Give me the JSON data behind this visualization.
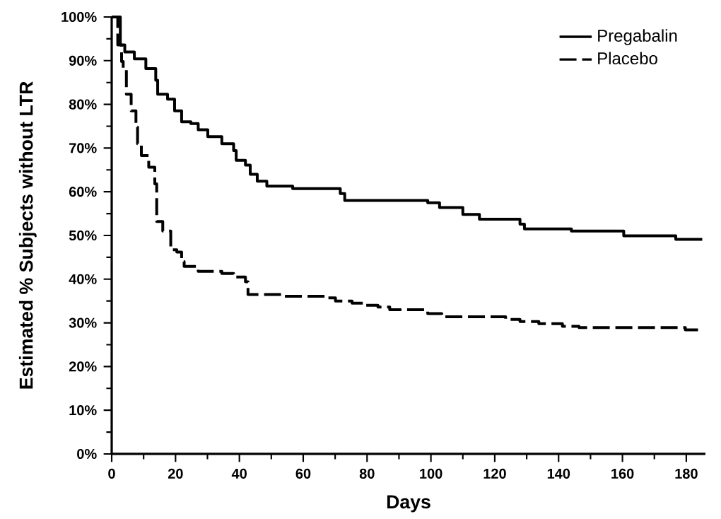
{
  "chart_data": {
    "type": "step",
    "xlabel": "Days",
    "ylabel": "Estimated % Subjects without LTR",
    "xlim": [
      0,
      186
    ],
    "ylim": [
      0,
      100
    ],
    "xticks": [
      0,
      20,
      40,
      60,
      80,
      100,
      120,
      140,
      160,
      180
    ],
    "yticks": [
      {
        "value": 0,
        "label": "0%"
      },
      {
        "value": 10,
        "label": "10%"
      },
      {
        "value": 20,
        "label": "20%"
      },
      {
        "value": 30,
        "label": "30%"
      },
      {
        "value": 40,
        "label": "40%"
      },
      {
        "value": 50,
        "label": "50%"
      },
      {
        "value": 60,
        "label": "60%"
      },
      {
        "value": 70,
        "label": "70%"
      },
      {
        "value": 80,
        "label": "80%"
      },
      {
        "value": 90,
        "label": "90%"
      },
      {
        "value": 100,
        "label": "100%"
      }
    ],
    "legend": "top right",
    "grid": false,
    "marker": "none",
    "series": [
      {
        "name": "Pregabalin",
        "color": "#000000",
        "line_style": "solid",
        "x": [
          0,
          2.7,
          4.1,
          7.1,
          10.7,
          13.8,
          14.4,
          17.5,
          19.7,
          21.9,
          24.8,
          27.1,
          30.1,
          34.5,
          38.2,
          39,
          41.9,
          43.4,
          45.6,
          48.6,
          56.7,
          71.6,
          73,
          99,
          102.7,
          110,
          115.2,
          127.9,
          129.3,
          144,
          160.4,
          176.7,
          185
        ],
        "values": [
          100,
          93.6,
          92,
          90.4,
          88.2,
          85.5,
          82.3,
          81.2,
          78.5,
          76,
          75.6,
          74.2,
          72.6,
          71,
          69.4,
          67.2,
          66.1,
          64,
          62.4,
          61.3,
          60.7,
          59.6,
          58,
          57.5,
          56.4,
          54.8,
          53.7,
          52.6,
          51.5,
          51,
          49.9,
          49.1,
          49.1
        ]
      },
      {
        "name": "Placebo",
        "color": "#000000",
        "line_style": "dashed",
        "x": [
          0,
          1.9,
          3.1,
          3.6,
          4.6,
          6.1,
          7.6,
          8.1,
          9.3,
          11.6,
          13.5,
          14.1,
          16,
          18.5,
          20.4,
          21.9,
          22.7,
          27.1,
          34.5,
          38.2,
          41.9,
          42.7,
          53.8,
          67.1,
          70.1,
          75.3,
          79,
          83.4,
          87.1,
          99,
          103.4,
          123.4,
          127.9,
          133.8,
          141.2,
          146.4,
          179.7,
          185
        ],
        "values": [
          100,
          93.6,
          89.8,
          88.2,
          82.3,
          78.5,
          74.8,
          71,
          68.3,
          65.6,
          61.8,
          53.2,
          51,
          46.7,
          46.2,
          44,
          42.9,
          41.8,
          41.3,
          40.5,
          39.4,
          36.5,
          36.1,
          35.7,
          35,
          34.5,
          34,
          33.6,
          33,
          32.1,
          31.4,
          30.8,
          30.3,
          29.8,
          29.2,
          28.9,
          28.4,
          28.4
        ]
      }
    ]
  }
}
